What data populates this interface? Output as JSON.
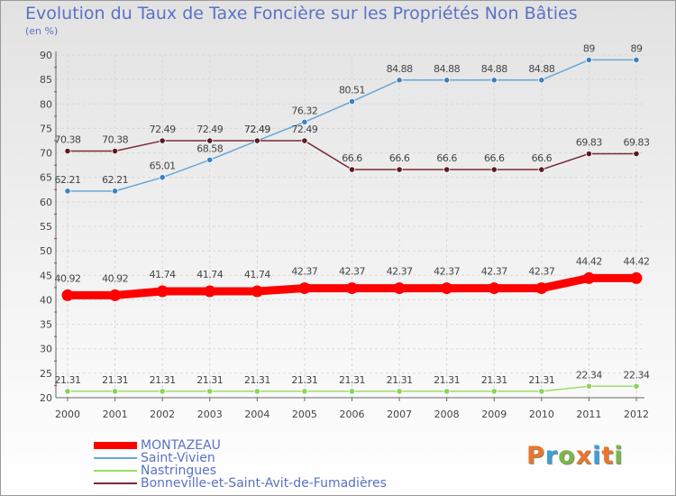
{
  "title": "Evolution du Taux de Taxe Foncière sur les Propriétés Non Bâties",
  "unit_label": "(en %)",
  "logo": {
    "text": "Proxiti",
    "colors": [
      "#e8762c",
      "#3aa0d8",
      "#7ab648",
      "#e8762c",
      "#3aa0d8",
      "#e8762c",
      "#7ab648"
    ]
  },
  "chart_data": {
    "type": "line",
    "x": [
      "2000",
      "2001",
      "2002",
      "2003",
      "2004",
      "2005",
      "2006",
      "2007",
      "2008",
      "2009",
      "2010",
      "2011",
      "2012"
    ],
    "ylim": [
      20,
      90
    ],
    "yticks": [
      "20",
      "25",
      "30",
      "35",
      "40",
      "45",
      "50",
      "55",
      "60",
      "65",
      "70",
      "75",
      "80",
      "85",
      "90"
    ],
    "grid": true,
    "legend_position": "bottom-left",
    "series": [
      {
        "name": "Saint-Vivien",
        "color": "#6aa6d6",
        "marker": "#3a82c4",
        "width": 1.5,
        "values": [
          62.21,
          62.21,
          65.01,
          68.58,
          72.49,
          76.32,
          80.51,
          84.88,
          84.88,
          84.88,
          84.88,
          89,
          89
        ],
        "labels": [
          "62.21",
          "62.21",
          "65.01",
          "68.58",
          "72.49",
          "76.32",
          "80.51",
          "84.88",
          "84.88",
          "84.88",
          "84.88",
          "89",
          "89"
        ]
      },
      {
        "name": "Bonneville-et-Saint-Avit-de-Fumadières",
        "color": "#7a2a36",
        "marker": "#5a1a22",
        "width": 1.5,
        "values": [
          70.38,
          70.38,
          72.49,
          72.49,
          72.49,
          72.49,
          66.6,
          66.6,
          66.6,
          66.6,
          66.6,
          69.83,
          69.83
        ],
        "labels": [
          "70.38",
          "70.38",
          "72.49",
          "72.49",
          "72.49",
          "72.49",
          "66.6",
          "66.6",
          "66.6",
          "66.6",
          "66.6",
          "69.83",
          "69.83"
        ]
      },
      {
        "name": "MONTAZEAU",
        "color": "#ff0000",
        "marker": "#ff0000",
        "width": 9,
        "values": [
          40.92,
          40.92,
          41.74,
          41.74,
          41.74,
          42.37,
          42.37,
          42.37,
          42.37,
          42.37,
          42.37,
          44.42,
          44.42
        ],
        "labels": [
          "40.92",
          "40.92",
          "41.74",
          "41.74",
          "41.74",
          "42.37",
          "42.37",
          "42.37",
          "42.37",
          "42.37",
          "42.37",
          "44.42",
          "44.42"
        ]
      },
      {
        "name": "Nastringues",
        "color": "#9adc6a",
        "marker": "#8ad45a",
        "width": 1.5,
        "values": [
          21.31,
          21.31,
          21.31,
          21.31,
          21.31,
          21.31,
          21.31,
          21.31,
          21.31,
          21.31,
          21.31,
          22.34,
          22.34
        ],
        "labels": [
          "21.31",
          "21.31",
          "21.31",
          "21.31",
          "21.31",
          "21.31",
          "21.31",
          "21.31",
          "21.31",
          "21.31",
          "21.31",
          "22.34",
          "22.34"
        ]
      }
    ],
    "legend": [
      {
        "name": "MONTAZEAU",
        "color": "#ff0000",
        "thickness": 8
      },
      {
        "name": "Saint-Vivien",
        "color": "#6aa6d6",
        "thickness": 2
      },
      {
        "name": "Nastringues",
        "color": "#9adc6a",
        "thickness": 2
      },
      {
        "name": "Bonneville-et-Saint-Avit-de-Fumadières",
        "color": "#7a2a36",
        "thickness": 2
      }
    ]
  }
}
